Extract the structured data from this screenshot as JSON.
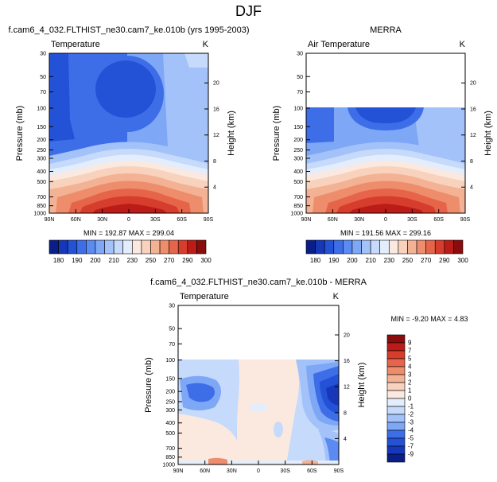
{
  "title": "DJF",
  "palette_levels": [
    "#0a1e8a",
    "#1537b8",
    "#2452d6",
    "#3d6ee8",
    "#5a8af2",
    "#7ea7f6",
    "#a3c2f9",
    "#c6dafb",
    "#e3edfc",
    "#fbe9e0",
    "#f8d2bc",
    "#f4b294",
    "#ee8d6b",
    "#e6654a",
    "#d73d2c",
    "#bb1c17",
    "#8a0c0c"
  ],
  "chart_data": [
    {
      "type": "heatmap",
      "header": "f.cam6_4_032.FLTHIST_ne30.cam7_ke.010b (yrs 1995-2003)",
      "title": "Temperature",
      "units": "K",
      "ylabel": "Pressure (mb)",
      "ylabel_right": "Height (km)",
      "x_ticks": [
        "90N",
        "60N",
        "30N",
        "0",
        "30S",
        "60S",
        "90S"
      ],
      "y_ticks": [
        "30",
        "50",
        "70",
        "100",
        "150",
        "200",
        "250",
        "300",
        "400",
        "500",
        "700",
        "850",
        "1000"
      ],
      "height_ticks": [
        "20",
        "16",
        "12",
        "8",
        "4"
      ],
      "stats": "MIN = 192.87  MAX = 299.04",
      "min": 192.87,
      "max": 299.04,
      "data_top_pressure": 30
    },
    {
      "type": "heatmap",
      "header": "MERRA",
      "title": "Air Temperature",
      "units": "K",
      "ylabel": "Pressure (mb)",
      "ylabel_right": "Height (km)",
      "x_ticks": [
        "90N",
        "60N",
        "30N",
        "0",
        "30S",
        "60S",
        "90S"
      ],
      "y_ticks": [
        "30",
        "50",
        "70",
        "100",
        "150",
        "200",
        "250",
        "300",
        "400",
        "500",
        "700",
        "850",
        "1000"
      ],
      "height_ticks": [
        "20",
        "16",
        "12",
        "8",
        "4"
      ],
      "stats": "MIN = 191.56  MAX = 299.16",
      "min": 191.56,
      "max": 299.16,
      "data_top_pressure": 100
    },
    {
      "type": "heatmap",
      "header": "f.cam6_4_032.FLTHIST_ne30.cam7_ke.010b - MERRA",
      "title": "Temperature",
      "units": "K",
      "ylabel": "Pressure (mb)",
      "ylabel_right": "Height (km)",
      "x_ticks": [
        "90N",
        "60N",
        "30N",
        "0",
        "30S",
        "60S",
        "90S"
      ],
      "y_ticks": [
        "30",
        "50",
        "70",
        "100",
        "150",
        "200",
        "250",
        "300",
        "400",
        "500",
        "700",
        "850",
        "1000"
      ],
      "height_ticks": [
        "20",
        "16",
        "12",
        "8",
        "4"
      ],
      "stats": "MIN =  -9.20  MAX =   4.83",
      "min": -9.2,
      "max": 4.83,
      "data_top_pressure": 100
    }
  ],
  "colorbar_abs": {
    "labels": [
      "180",
      "190",
      "200",
      "210",
      "230",
      "250",
      "270",
      "290",
      "300"
    ]
  },
  "colorbar_diff": {
    "labels": [
      "9",
      "7",
      "5",
      "4",
      "3",
      "2",
      "1",
      "0",
      "-1",
      "-2",
      "-3",
      "-4",
      "-5",
      "-7",
      "-9"
    ],
    "colors": [
      "#8a0c0c",
      "#bb1c17",
      "#d73d2c",
      "#e6654a",
      "#ee8d6b",
      "#f4b294",
      "#f8d2bc",
      "#fbe9e0",
      "#e3edfc",
      "#c6dafb",
      "#a3c2f9",
      "#7ea7f6",
      "#3d6ee8",
      "#2452d6",
      "#1537b8",
      "#0a1e8a"
    ]
  }
}
